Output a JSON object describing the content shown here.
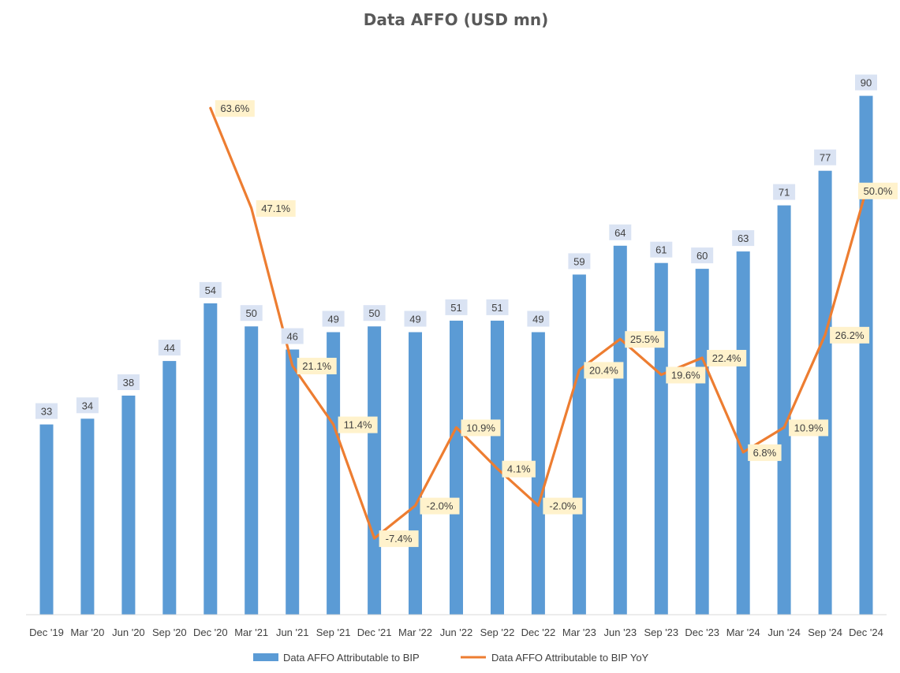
{
  "chart_data": {
    "type": "bar",
    "title": "Data AFFO (USD mn)",
    "xlabel": "",
    "ylabel": "",
    "categories": [
      "Dec '19",
      "Mar '20",
      "Jun '20",
      "Sep '20",
      "Dec '20",
      "Mar '21",
      "Jun '21",
      "Sep '21",
      "Dec '21",
      "Mar '22",
      "Jun '22",
      "Sep '22",
      "Dec '22",
      "Mar '23",
      "Jun '23",
      "Sep '23",
      "Dec '23",
      "Mar '24",
      "Jun '24",
      "Sep '24",
      "Dec '24"
    ],
    "series": [
      {
        "name": "Data AFFO Attributable to BIP",
        "type": "bar",
        "color": "#5B9BD5",
        "values": [
          33,
          34,
          38,
          44,
          54,
          50,
          46,
          49,
          50,
          49,
          51,
          51,
          49,
          59,
          64,
          61,
          60,
          63,
          71,
          77,
          90
        ],
        "labels": [
          "33",
          "34",
          "38",
          "44",
          "54",
          "50",
          "46",
          "49",
          "50",
          "49",
          "51",
          "51",
          "49",
          "59",
          "64",
          "61",
          "60",
          "63",
          "71",
          "77",
          "90"
        ]
      },
      {
        "name": "Data AFFO Attributable to BIP YoY",
        "type": "line",
        "color": "#ED7D31",
        "values": [
          null,
          null,
          null,
          null,
          63.6,
          47.1,
          21.1,
          11.4,
          -7.4,
          -2.0,
          10.9,
          4.1,
          -2.0,
          20.4,
          25.5,
          19.6,
          22.4,
          6.8,
          10.9,
          26.2,
          50.0
        ],
        "labels": [
          "",
          "",
          "",
          "",
          "63.6%",
          "47.1%",
          "21.1%",
          "11.4%",
          "-7.4%",
          "-2.0%",
          "10.9%",
          "4.1%",
          "-2.0%",
          "20.4%",
          "25.5%",
          "19.6%",
          "22.4%",
          "6.8%",
          "10.9%",
          "26.2%",
          "50.0%"
        ]
      }
    ],
    "bar_axis_range": [
      0,
      95
    ],
    "line_axis_range": [
      -20,
      70
    ],
    "grid": false,
    "legend_position": "bottom",
    "bar_label_bg": "#DAE3F3",
    "line_label_bg": "#FFF2CC"
  }
}
